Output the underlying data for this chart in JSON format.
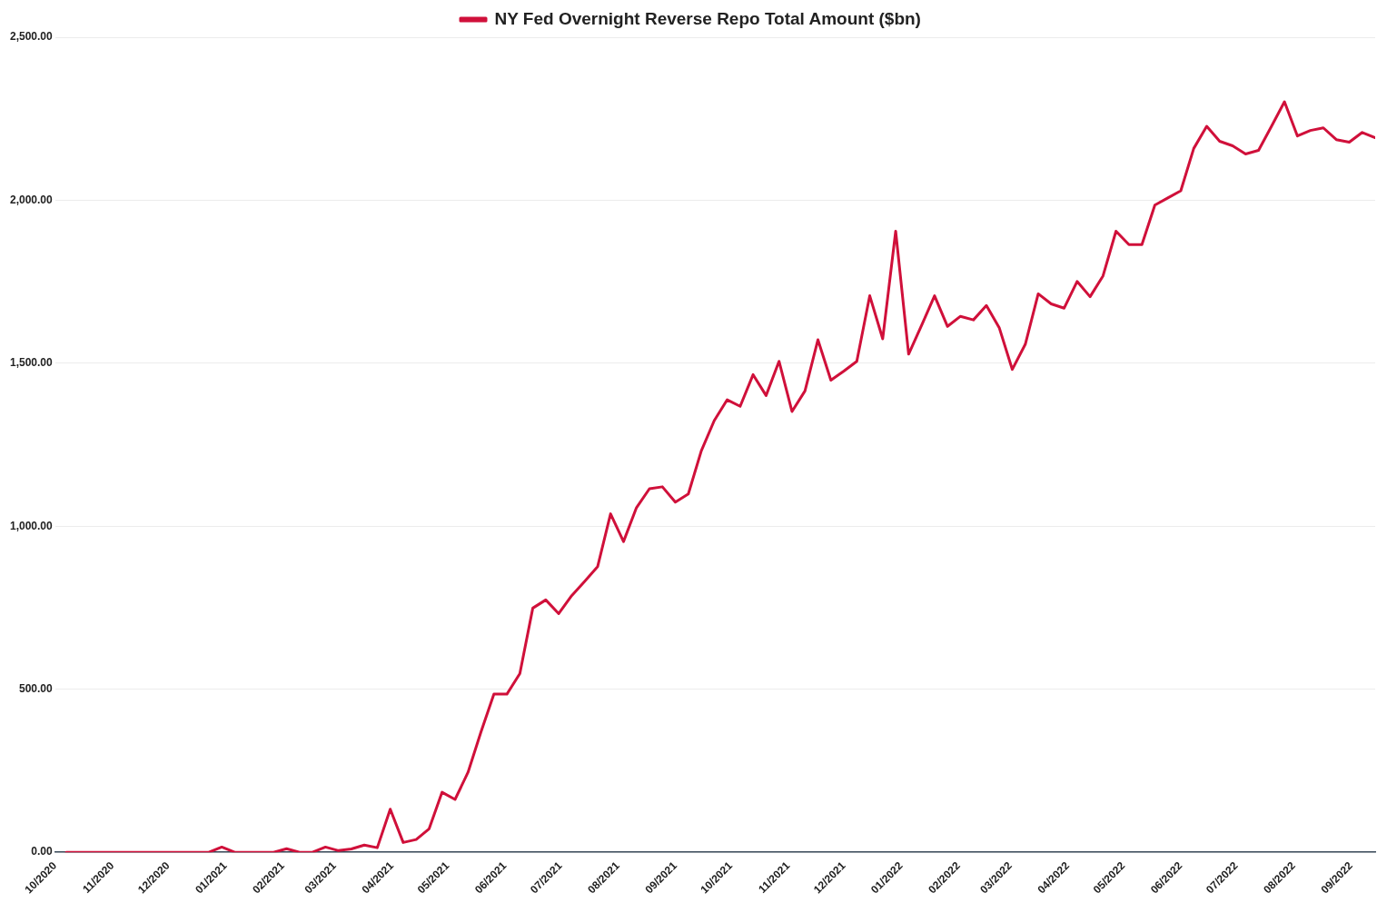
{
  "chart_data": {
    "type": "line",
    "x": [
      "2020-10-07",
      "2020-10-14",
      "2020-10-21",
      "2020-10-28",
      "2020-11-04",
      "2020-11-11",
      "2020-11-18",
      "2020-11-25",
      "2020-12-02",
      "2020-12-09",
      "2020-12-16",
      "2020-12-23",
      "2020-12-30",
      "2021-01-06",
      "2021-01-13",
      "2021-01-20",
      "2021-01-27",
      "2021-02-03",
      "2021-02-10",
      "2021-02-17",
      "2021-02-24",
      "2021-03-03",
      "2021-03-10",
      "2021-03-17",
      "2021-03-24",
      "2021-03-31",
      "2021-04-07",
      "2021-04-14",
      "2021-04-21",
      "2021-04-28",
      "2021-05-05",
      "2021-05-12",
      "2021-05-19",
      "2021-05-26",
      "2021-06-02",
      "2021-06-09",
      "2021-06-16",
      "2021-06-23",
      "2021-06-30",
      "2021-07-07",
      "2021-07-14",
      "2021-07-21",
      "2021-07-28",
      "2021-08-04",
      "2021-08-11",
      "2021-08-18",
      "2021-08-25",
      "2021-09-01",
      "2021-09-08",
      "2021-09-15",
      "2021-09-22",
      "2021-09-29",
      "2021-10-06",
      "2021-10-13",
      "2021-10-20",
      "2021-10-27",
      "2021-11-03",
      "2021-11-10",
      "2021-11-17",
      "2021-11-24",
      "2021-12-01",
      "2021-12-08",
      "2021-12-15",
      "2021-12-22",
      "2021-12-29",
      "2022-01-05",
      "2022-01-12",
      "2022-01-19",
      "2022-01-26",
      "2022-02-02",
      "2022-02-09",
      "2022-02-16",
      "2022-02-23",
      "2022-03-02",
      "2022-03-09",
      "2022-03-16",
      "2022-03-23",
      "2022-03-30",
      "2022-04-06",
      "2022-04-13",
      "2022-04-20",
      "2022-04-27",
      "2022-05-04",
      "2022-05-11",
      "2022-05-18",
      "2022-05-25",
      "2022-06-01",
      "2022-06-08",
      "2022-06-15",
      "2022-06-22",
      "2022-06-29",
      "2022-07-06",
      "2022-07-13",
      "2022-07-20",
      "2022-07-27",
      "2022-08-03",
      "2022-08-10",
      "2022-08-17",
      "2022-08-24",
      "2022-08-31",
      "2022-09-07",
      "2022-09-14"
    ],
    "series": [
      {
        "name": "NY Fed Overnight Reverse Repo Total Amount ($bn)",
        "color": "#d0103a",
        "values": [
          0,
          0,
          0,
          0,
          0,
          0,
          0,
          0,
          0,
          0,
          0,
          0,
          16,
          0,
          0,
          0,
          0,
          11,
          0,
          0,
          16,
          5,
          10,
          22,
          14,
          132,
          30,
          39,
          72,
          184,
          162,
          245,
          369,
          485,
          485,
          548,
          749,
          774,
          732,
          787,
          831,
          876,
          1038,
          953,
          1057,
          1115,
          1121,
          1074,
          1099,
          1231,
          1324,
          1388,
          1368,
          1465,
          1401,
          1506,
          1352,
          1415,
          1572,
          1448,
          1476,
          1506,
          1707,
          1575,
          1905,
          1528,
          1616,
          1707,
          1613,
          1644,
          1633,
          1677,
          1608,
          1481,
          1558,
          1713,
          1682,
          1669,
          1751,
          1704,
          1768,
          1905,
          1864,
          1864,
          1985,
          2007,
          2029,
          2159,
          2227,
          2181,
          2167,
          2142,
          2153,
          2227,
          2302,
          2197,
          2214,
          2222,
          2186,
          2178,
          2208,
          2192
        ]
      }
    ],
    "xlim": [
      "2020-10-01",
      "2022-09-14"
    ],
    "xticks": [
      {
        "value": "2020-10-01",
        "label": "10/2020"
      },
      {
        "value": "2020-11-01",
        "label": "11/2020"
      },
      {
        "value": "2020-12-01",
        "label": "12/2020"
      },
      {
        "value": "2021-01-01",
        "label": "01/2021"
      },
      {
        "value": "2021-02-01",
        "label": "02/2021"
      },
      {
        "value": "2021-03-01",
        "label": "03/2021"
      },
      {
        "value": "2021-04-01",
        "label": "04/2021"
      },
      {
        "value": "2021-05-01",
        "label": "05/2021"
      },
      {
        "value": "2021-06-01",
        "label": "06/2021"
      },
      {
        "value": "2021-07-01",
        "label": "07/2021"
      },
      {
        "value": "2021-08-01",
        "label": "08/2021"
      },
      {
        "value": "2021-09-01",
        "label": "09/2021"
      },
      {
        "value": "2021-10-01",
        "label": "10/2021"
      },
      {
        "value": "2021-11-01",
        "label": "11/2021"
      },
      {
        "value": "2021-12-01",
        "label": "12/2021"
      },
      {
        "value": "2022-01-01",
        "label": "01/2022"
      },
      {
        "value": "2022-02-01",
        "label": "02/2022"
      },
      {
        "value": "2022-03-01",
        "label": "03/2022"
      },
      {
        "value": "2022-04-01",
        "label": "04/2022"
      },
      {
        "value": "2022-05-01",
        "label": "05/2022"
      },
      {
        "value": "2022-06-01",
        "label": "06/2022"
      },
      {
        "value": "2022-07-01",
        "label": "07/2022"
      },
      {
        "value": "2022-08-01",
        "label": "08/2022"
      },
      {
        "value": "2022-09-01",
        "label": "09/2022"
      }
    ],
    "ylim": [
      0,
      2500
    ],
    "yticks": [
      {
        "value": 0,
        "label": "0.00"
      },
      {
        "value": 500,
        "label": "500.00"
      },
      {
        "value": 1000,
        "label": "1,000.00"
      },
      {
        "value": 1500,
        "label": "1,500.00"
      },
      {
        "value": 2000,
        "label": "2,000.00"
      },
      {
        "value": 2500,
        "label": "2,500.00"
      }
    ],
    "grid": "y",
    "legend": "top",
    "marker": "none",
    "line_style": "solid"
  }
}
